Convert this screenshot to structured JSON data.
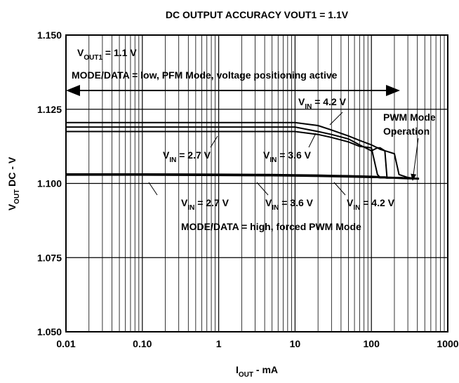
{
  "chart_data": {
    "type": "line",
    "title": "DC OUTPUT ACCURACY VOUT1 = 1.1V",
    "x_label": {
      "main": "I",
      "sub": "OUT",
      "rest": " - mA"
    },
    "y_label": {
      "main": "V",
      "sub": "OUT",
      "rest": " DC - V"
    },
    "xscale": "log",
    "grid": true,
    "xlim": [
      0.01,
      1000
    ],
    "xticks": [
      0.01,
      {
        "value": 0.1,
        "label": "0.10"
      },
      1,
      10,
      100,
      1000
    ],
    "ylim": [
      1.05,
      1.15
    ],
    "yticks": [
      {
        "value": 1.05,
        "label": "1.050"
      },
      {
        "value": 1.075,
        "label": "1.075"
      },
      {
        "value": 1.1,
        "label": "1.100"
      },
      {
        "value": 1.125,
        "label": "1.125"
      },
      {
        "value": 1.15,
        "label": "1.150"
      }
    ],
    "x": [
      0.01,
      0.1,
      1,
      5,
      10,
      20,
      30,
      50,
      70,
      100,
      120,
      130,
      150,
      160,
      200,
      230,
      300,
      420
    ],
    "series": [
      {
        "color": "#000000",
        "values": [
          1.1175,
          1.1175,
          1.1175,
          1.1175,
          1.1175,
          1.1165,
          1.1155,
          1.114,
          1.1125,
          1.112,
          1.103,
          1.102,
          1.102,
          1.102,
          1.102,
          1.102,
          1.1018,
          1.1015
        ]
      },
      {
        "color": "#000000",
        "values": [
          1.119,
          1.119,
          1.119,
          1.119,
          1.119,
          1.1175,
          1.1165,
          1.115,
          1.113,
          1.111,
          1.112,
          1.112,
          1.111,
          1.102,
          1.102,
          1.102,
          1.1018,
          1.1015
        ]
      },
      {
        "color": "#000000",
        "values": [
          1.1205,
          1.1205,
          1.1205,
          1.1205,
          1.1205,
          1.1195,
          1.118,
          1.116,
          1.1145,
          1.113,
          1.112,
          1.1115,
          1.111,
          1.1108,
          1.11,
          1.103,
          1.102,
          1.1015
        ]
      },
      {
        "color": "#000000",
        "values": [
          1.1028,
          1.1028,
          1.1027,
          1.1026,
          1.1025,
          1.1024,
          1.1023,
          1.1022,
          1.1021,
          1.102,
          1.102,
          1.1019,
          1.1019,
          1.1018,
          1.1018,
          1.1017,
          1.1016,
          1.1015
        ]
      },
      {
        "color": "#000000",
        "values": [
          1.103,
          1.103,
          1.1029,
          1.1028,
          1.1027,
          1.1026,
          1.1025,
          1.1024,
          1.1023,
          1.1022,
          1.1021,
          1.1021,
          1.102,
          1.102,
          1.1019,
          1.1018,
          1.1017,
          1.1016
        ]
      },
      {
        "color": "#000000",
        "values": [
          1.1032,
          1.1032,
          1.1031,
          1.103,
          1.1029,
          1.1028,
          1.1027,
          1.1026,
          1.1025,
          1.1024,
          1.1023,
          1.1022,
          1.1022,
          1.1021,
          1.102,
          1.1019,
          1.1018,
          1.1017
        ]
      }
    ],
    "annotations": [
      {
        "main": "V",
        "sub": "OUT1",
        "rest": " = 1.1 V"
      },
      {
        "text": "MODE/DATA = low, PFM Mode, voltage positioning active"
      },
      {
        "main": "V",
        "sub": "IN",
        "rest": " = 4.2 V"
      },
      {
        "text": "PWM Mode"
      },
      {
        "text": "Operation"
      },
      {
        "main": "V",
        "sub": "IN",
        "rest": " = 2.7 V"
      },
      {
        "main": "V",
        "sub": "IN",
        "rest": " = 3.6 V"
      },
      {
        "main": "V",
        "sub": "IN",
        "rest": " = 2.7 V"
      },
      {
        "main": "V",
        "sub": "IN",
        "rest": " = 3.6 V"
      },
      {
        "main": "V",
        "sub": "IN",
        "rest": " = 4.2 V"
      },
      {
        "text": "MODE/DATA = high, forced PWM Mode"
      }
    ]
  }
}
